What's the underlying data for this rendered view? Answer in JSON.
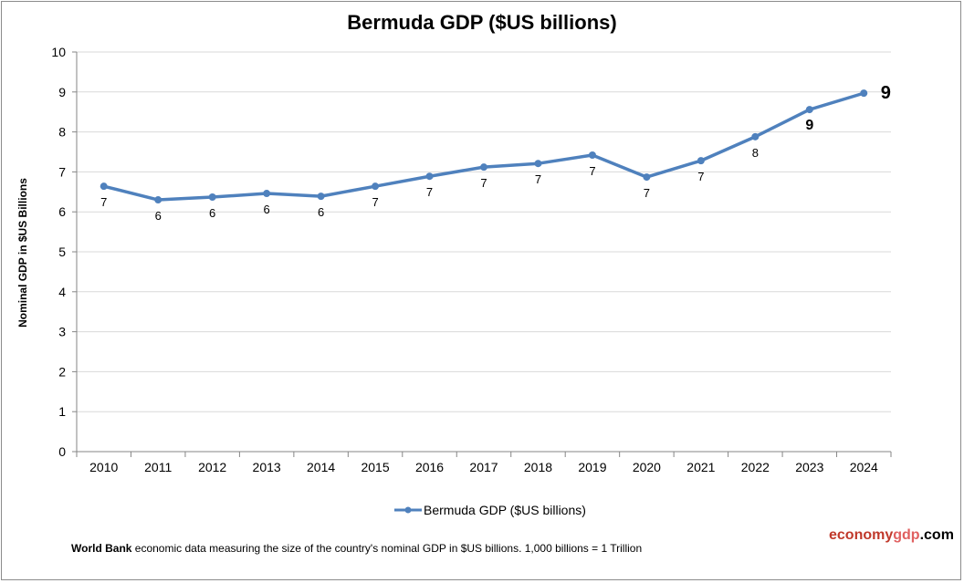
{
  "chart_data": {
    "type": "line",
    "title": "Bermuda GDP ($US billions)",
    "xlabel": "",
    "ylabel": "Nominal GDP in $US  Billions",
    "ylim": [
      0,
      10
    ],
    "yticks": [
      0,
      1,
      2,
      3,
      4,
      5,
      6,
      7,
      8,
      9,
      10
    ],
    "grid": true,
    "legend_position": "bottom",
    "categories": [
      "2010",
      "2011",
      "2012",
      "2013",
      "2014",
      "2015",
      "2016",
      "2017",
      "2018",
      "2019",
      "2020",
      "2021",
      "2022",
      "2023",
      "2024"
    ],
    "series": [
      {
        "name": "Bermuda GDP ($US billions)",
        "color": "#4f81bd",
        "values": [
          6.64,
          6.3,
          6.37,
          6.46,
          6.39,
          6.64,
          6.89,
          7.12,
          7.21,
          7.42,
          6.87,
          7.28,
          7.88,
          8.56,
          8.97
        ],
        "data_labels": [
          "7",
          "6",
          "6",
          "6",
          "6",
          "7",
          "7",
          "7",
          "7",
          "7",
          "7",
          "7",
          "8",
          "9",
          "9"
        ]
      }
    ]
  },
  "footer": {
    "source_bold": "World Bank",
    "source_text": " economic data  measuring the size of the country's nominal GDP in $US billions. 1,000 billions = 1 Trillion"
  },
  "brand": {
    "part1": "economy",
    "part2": "gdp",
    "part3": ".com",
    "color1": "#c0392b",
    "color2": "#e06060"
  }
}
